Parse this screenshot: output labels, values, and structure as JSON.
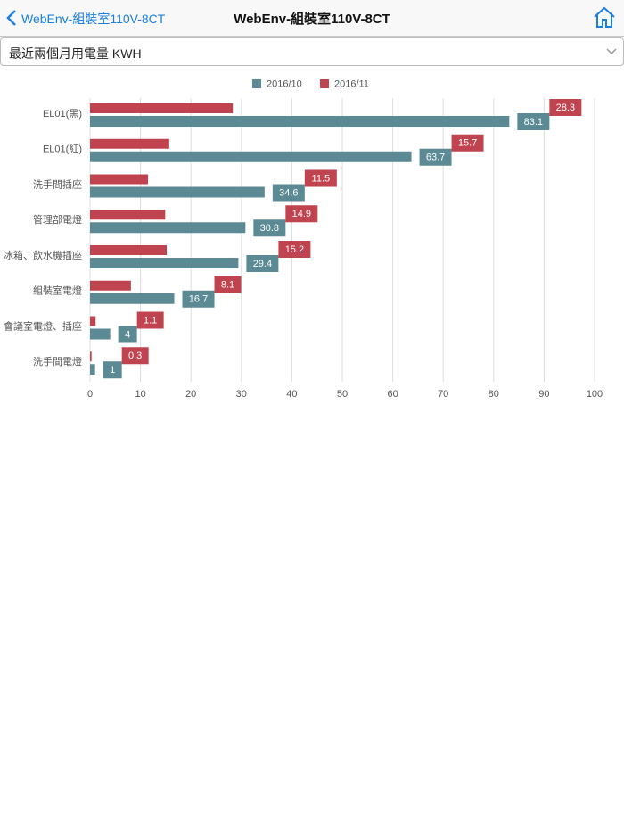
{
  "nav": {
    "back": "WebEnv-組裝室110V-8CT",
    "title": "WebEnv-組裝室110V-8CT"
  },
  "select": "最近兩個月用電量 KWH",
  "chart_data": {
    "type": "bar",
    "orientation": "horizontal",
    "categories": [
      "EL01(黑)",
      "EL01(紅)",
      "洗手間插座",
      "管理部電燈",
      "冰箱、飲水機插座",
      "組裝室電燈",
      "會議室電燈、插座",
      "洗手間電燈"
    ],
    "series": [
      {
        "name": "2016/10",
        "color": "#5b8a94",
        "values": [
          83.1,
          63.7,
          34.6,
          30.8,
          29.4,
          16.7,
          4,
          1
        ]
      },
      {
        "name": "2016/11",
        "color": "#c0444f",
        "values": [
          28.3,
          15.7,
          11.5,
          14.9,
          15.2,
          8.1,
          1.1,
          0.3
        ]
      }
    ],
    "xlim": [
      0,
      100
    ],
    "xticks": [
      0,
      10,
      20,
      30,
      40,
      50,
      60,
      70,
      80,
      90,
      100
    ],
    "grid": true,
    "legend": "top"
  }
}
